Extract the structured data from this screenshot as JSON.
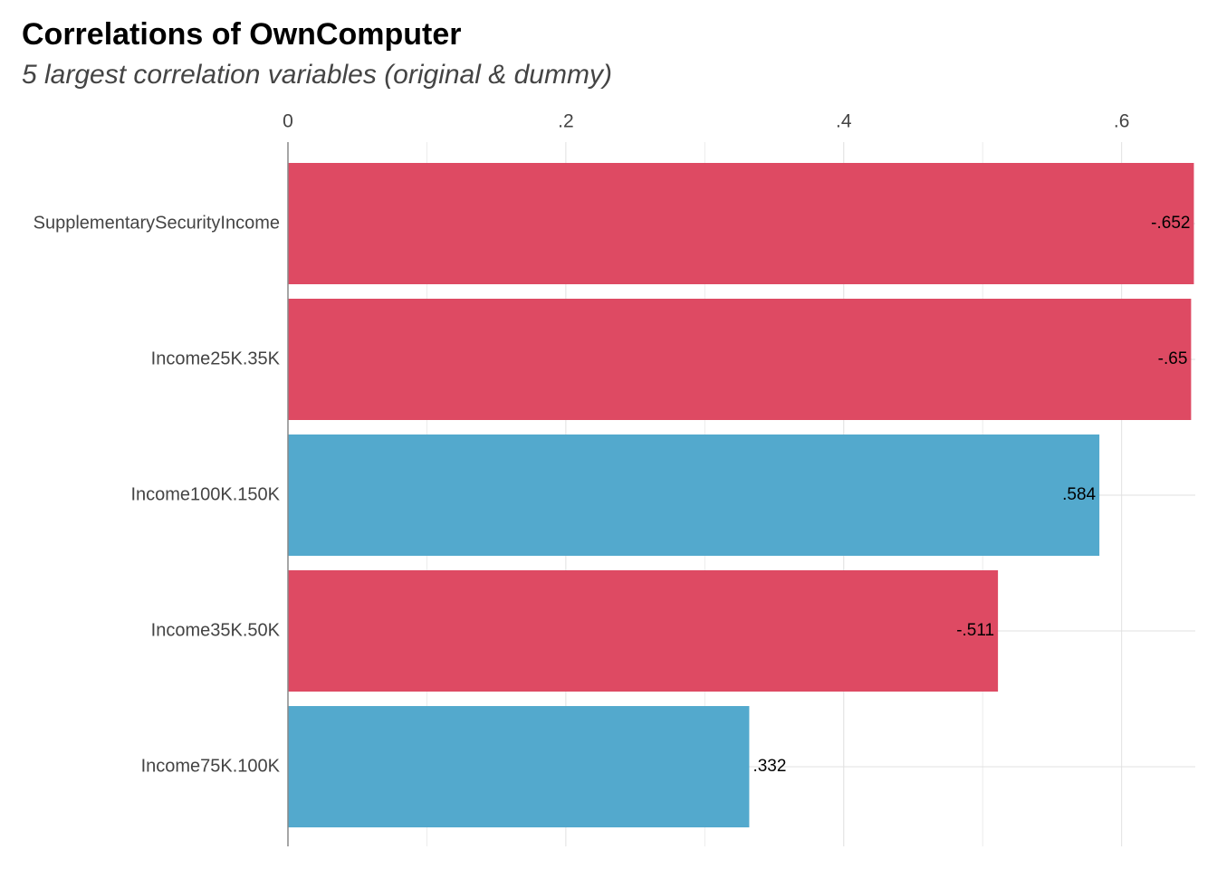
{
  "chart_data": {
    "type": "bar",
    "orientation": "horizontal",
    "title": "Correlations of OwnComputer",
    "subtitle": "5 largest correlation variables (original & dummy)",
    "categories": [
      "SupplementarySecurityIncome",
      "Income25K.35K",
      "Income100K.150K",
      "Income35K.50K",
      "Income75K.100K"
    ],
    "values": [
      -0.652,
      -0.65,
      0.584,
      -0.511,
      0.332
    ],
    "value_labels": [
      "-.652",
      "-.65",
      ".584",
      "-.511",
      ".332"
    ],
    "negative_color": "#de4a63",
    "positive_color": "#53a9cd",
    "xlim": [
      0,
      0.653
    ],
    "xticks": [
      0,
      {
        "value": 0.2,
        "label": ".2"
      },
      {
        "value": 0.4,
        "label": ".4"
      },
      {
        "value": 0.6,
        "label": ".6"
      }
    ],
    "grid": true
  }
}
